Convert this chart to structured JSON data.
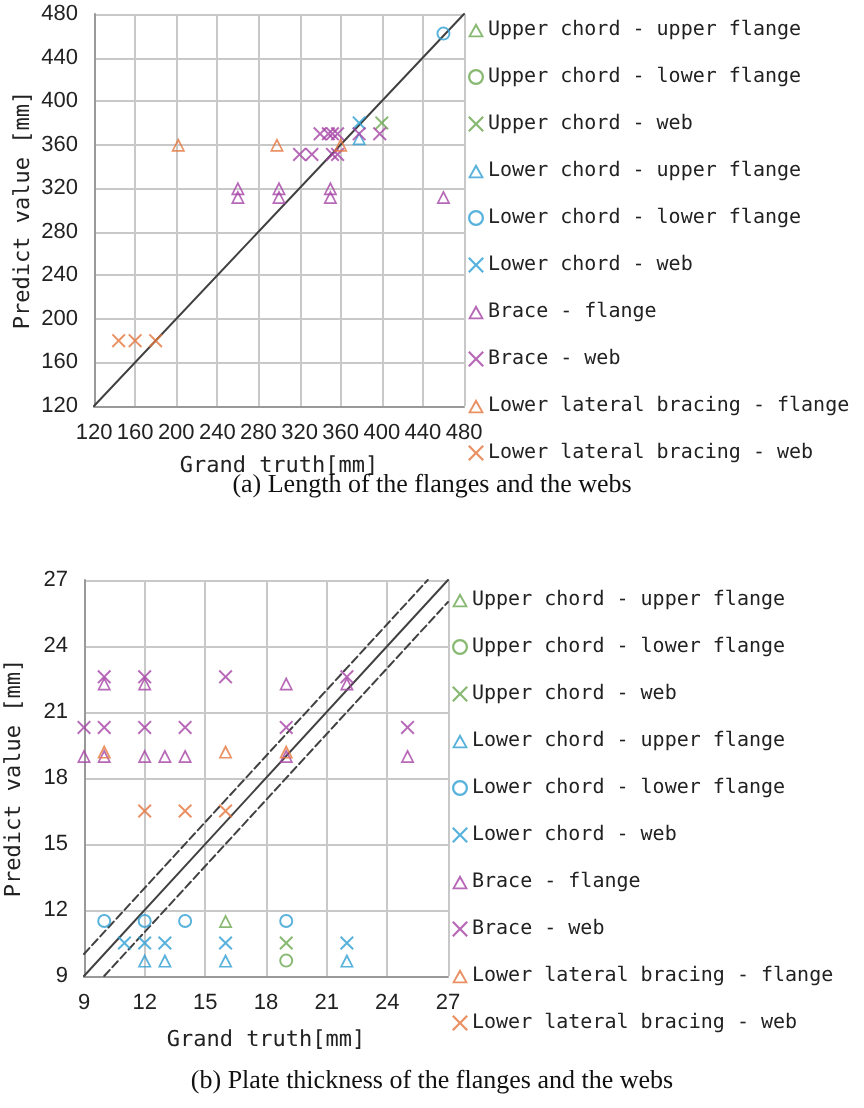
{
  "chart_data": [
    {
      "type": "scatter",
      "title": "(a) Length of the flanges and the webs",
      "xlabel": "Grand truth[mm]",
      "ylabel": "Predict value [mm]",
      "xlim": [
        120,
        480
      ],
      "ylim": [
        120,
        480
      ],
      "xticks": [
        120,
        160,
        200,
        240,
        280,
        320,
        360,
        400,
        440,
        480
      ],
      "yticks": [
        120,
        160,
        200,
        240,
        280,
        320,
        360,
        400,
        440,
        480
      ],
      "grid": true,
      "legend": "right",
      "series": [
        {
          "name": "Upper chord - upper flange",
          "color": "#6aa84f",
          "marker": "triangle"
        },
        {
          "name": "Upper chord - lower flange",
          "color": "#6aa84f",
          "marker": "circle"
        },
        {
          "name": "Upper chord - web",
          "color": "#6aa84f",
          "marker": "cross",
          "x": [
            400
          ],
          "values": [
            380
          ]
        },
        {
          "name": "Lower chord - upper flange",
          "color": "#2e9fd3",
          "marker": "triangle",
          "x": [
            378
          ],
          "values": [
            366
          ]
        },
        {
          "name": "Lower chord - lower flange",
          "color": "#2e9fd3",
          "marker": "circle",
          "x": [
            460
          ],
          "values": [
            462
          ]
        },
        {
          "name": "Lower chord - web",
          "color": "#2e9fd3",
          "marker": "cross",
          "x": [
            378
          ],
          "values": [
            380
          ]
        },
        {
          "name": "Brace - flange",
          "color": "#a543a5",
          "marker": "triangle",
          "x": [
            260,
            260,
            300,
            300,
            350,
            350,
            460
          ],
          "values": [
            320,
            312,
            320,
            312,
            320,
            312,
            312
          ]
        },
        {
          "name": "Brace - web",
          "color": "#a543a5",
          "marker": "cross",
          "x": [
            320,
            332,
            340,
            348,
            352,
            357,
            352,
            357,
            378,
            398
          ],
          "values": [
            351,
            351,
            370,
            370,
            370,
            370,
            351,
            351,
            370,
            370
          ]
        },
        {
          "name": "Lower lateral bracing - flange",
          "color": "#e5753d",
          "marker": "triangle",
          "x": [
            202,
            298,
            360
          ],
          "values": [
            360,
            360,
            360
          ]
        },
        {
          "name": "Lower lateral bracing - web",
          "color": "#e5753d",
          "marker": "cross",
          "x": [
            144,
            160,
            180
          ],
          "values": [
            180,
            180,
            180
          ]
        },
        {
          "type": "line",
          "color": "#404040",
          "line_style": "solid",
          "x": [
            120,
            480
          ],
          "values": [
            120,
            480
          ]
        }
      ]
    },
    {
      "type": "scatter",
      "title": "(b) Plate thickness of the flanges and the webs",
      "xlabel": "Grand truth[mm]",
      "ylabel": "Predict value [mm]",
      "xlim": [
        9,
        27
      ],
      "ylim": [
        9,
        27
      ],
      "xticks": [
        9,
        12,
        15,
        18,
        21,
        24,
        27
      ],
      "yticks": [
        9,
        12,
        15,
        18,
        21,
        24,
        27
      ],
      "grid": true,
      "legend": "right",
      "series": [
        {
          "name": "Upper chord - upper flange",
          "color": "#6aa84f",
          "marker": "triangle",
          "x": [
            16
          ],
          "values": [
            11.5
          ]
        },
        {
          "name": "Upper chord - lower flange",
          "color": "#6aa84f",
          "marker": "circle",
          "x": [
            19
          ],
          "values": [
            9.7
          ]
        },
        {
          "name": "Upper chord - web",
          "color": "#6aa84f",
          "marker": "cross",
          "x": [
            19
          ],
          "values": [
            10.5
          ]
        },
        {
          "name": "Lower chord - upper flange",
          "color": "#2e9fd3",
          "marker": "triangle",
          "x": [
            12,
            13,
            16,
            22
          ],
          "values": [
            9.7,
            9.7,
            9.7,
            9.7
          ]
        },
        {
          "name": "Lower chord - lower flange",
          "color": "#2e9fd3",
          "marker": "circle",
          "x": [
            10,
            12,
            14,
            19
          ],
          "values": [
            11.5,
            11.5,
            11.5,
            11.5
          ]
        },
        {
          "name": "Lower chord - web",
          "color": "#2e9fd3",
          "marker": "cross",
          "x": [
            11,
            12,
            13,
            16,
            22
          ],
          "values": [
            10.5,
            10.5,
            10.5,
            10.5,
            10.5
          ]
        },
        {
          "name": "Brace - flange",
          "color": "#a543a5",
          "marker": "triangle",
          "x": [
            10,
            12,
            19,
            22,
            9,
            10,
            12,
            13,
            14,
            19,
            25
          ],
          "values": [
            22.3,
            22.3,
            22.3,
            22.3,
            19,
            19,
            19,
            19,
            19,
            19,
            19
          ]
        },
        {
          "name": "Brace - web",
          "color": "#a543a5",
          "marker": "cross",
          "x": [
            10,
            12,
            16,
            22,
            9,
            10,
            12,
            14,
            19,
            25
          ],
          "values": [
            22.6,
            22.6,
            22.6,
            22.6,
            20.3,
            20.3,
            20.3,
            20.3,
            20.3,
            20.3
          ]
        },
        {
          "name": "Lower lateral bracing - flange",
          "color": "#e5753d",
          "marker": "triangle",
          "x": [
            10,
            16,
            19
          ],
          "values": [
            19.2,
            19.2,
            19.2
          ]
        },
        {
          "name": "Lower lateral bracing - web",
          "color": "#e5753d",
          "marker": "cross",
          "x": [
            12,
            14,
            16
          ],
          "values": [
            16.5,
            16.5,
            16.5
          ]
        },
        {
          "type": "line",
          "color": "#404040",
          "line_style": "solid",
          "x": [
            9,
            27
          ],
          "values": [
            9,
            27
          ]
        },
        {
          "type": "line",
          "color": "#404040",
          "line_style": "dashed",
          "x": [
            9,
            26
          ],
          "values": [
            10,
            27
          ]
        },
        {
          "type": "line",
          "color": "#404040",
          "line_style": "dashed",
          "x": [
            10,
            27
          ],
          "values": [
            9,
            26
          ]
        }
      ]
    }
  ]
}
